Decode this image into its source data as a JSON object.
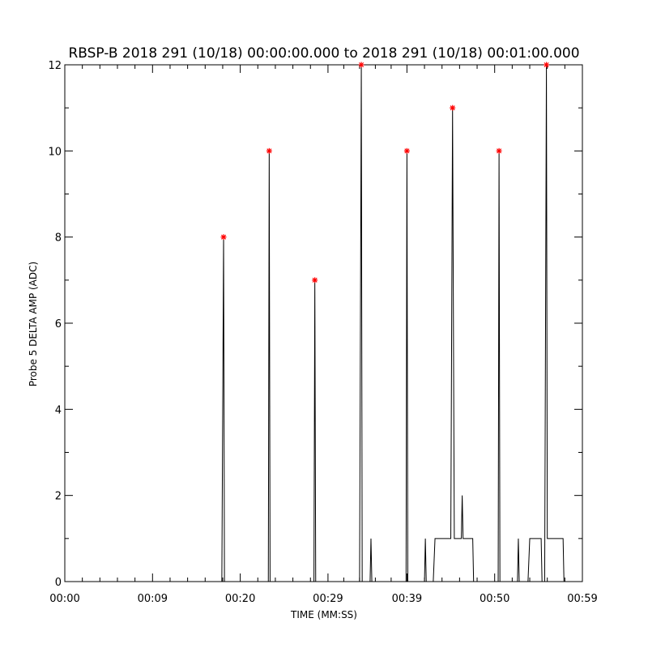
{
  "chart_data": {
    "type": "line",
    "title": "RBSP-B 2018 291 (10/18) 00:00:00.000 to 2018 291 (10/18) 00:01:00.000",
    "xlabel": "TIME (MM:SS)",
    "ylabel": "Probe 5 DELTA AMP (ADC)",
    "xlim": [
      0,
      59
    ],
    "ylim": [
      0,
      12
    ],
    "x_ticks": [
      {
        "value": 0,
        "label": "00:00"
      },
      {
        "value": 10,
        "label": "00:09"
      },
      {
        "value": 20,
        "label": "00:20"
      },
      {
        "value": 30,
        "label": "00:29"
      },
      {
        "value": 39,
        "label": "00:39"
      },
      {
        "value": 49,
        "label": "00:50"
      },
      {
        "value": 59,
        "label": "00:59"
      }
    ],
    "y_ticks": [
      0,
      2,
      4,
      6,
      8,
      10,
      12
    ],
    "grid": false,
    "colors": {
      "line": "#000000",
      "peak_marker": "#ff0000"
    },
    "series": [
      {
        "values": [
          [
            0,
            0
          ],
          [
            17.9,
            0
          ],
          [
            18.1,
            8
          ],
          [
            18.2,
            0
          ],
          [
            23.2,
            0
          ],
          [
            23.3,
            10
          ],
          [
            23.4,
            0
          ],
          [
            28.4,
            0
          ],
          [
            28.5,
            7
          ],
          [
            28.6,
            0
          ],
          [
            33.6,
            0
          ],
          [
            33.8,
            12
          ],
          [
            33.9,
            0
          ],
          [
            34.8,
            0
          ],
          [
            34.9,
            1
          ],
          [
            35.0,
            0
          ],
          [
            38.9,
            0
          ],
          [
            39.0,
            10
          ],
          [
            39.1,
            0
          ],
          [
            41.0,
            0
          ],
          [
            41.1,
            1
          ],
          [
            41.2,
            0
          ],
          [
            42.0,
            0
          ],
          [
            42.2,
            1
          ],
          [
            44.0,
            1
          ],
          [
            44.2,
            11
          ],
          [
            44.4,
            1
          ],
          [
            45.2,
            1
          ],
          [
            45.3,
            2
          ],
          [
            45.4,
            1
          ],
          [
            46.5,
            1
          ],
          [
            46.6,
            0
          ],
          [
            49.4,
            0
          ],
          [
            49.5,
            10
          ],
          [
            49.6,
            0
          ],
          [
            51.6,
            0
          ],
          [
            51.7,
            1
          ],
          [
            51.8,
            0
          ],
          [
            52.8,
            0
          ],
          [
            53.0,
            1
          ],
          [
            54.3,
            1
          ],
          [
            54.4,
            0
          ],
          [
            54.7,
            0
          ],
          [
            54.9,
            12
          ],
          [
            55.0,
            1
          ],
          [
            56.8,
            1
          ],
          [
            56.9,
            0
          ],
          [
            59,
            0
          ]
        ]
      }
    ],
    "peaks": [
      {
        "x": 18.1,
        "y": 8
      },
      {
        "x": 23.3,
        "y": 10
      },
      {
        "x": 28.5,
        "y": 7
      },
      {
        "x": 33.8,
        "y": 12
      },
      {
        "x": 39.0,
        "y": 10
      },
      {
        "x": 44.2,
        "y": 11
      },
      {
        "x": 49.5,
        "y": 10
      },
      {
        "x": 54.9,
        "y": 12
      }
    ]
  }
}
